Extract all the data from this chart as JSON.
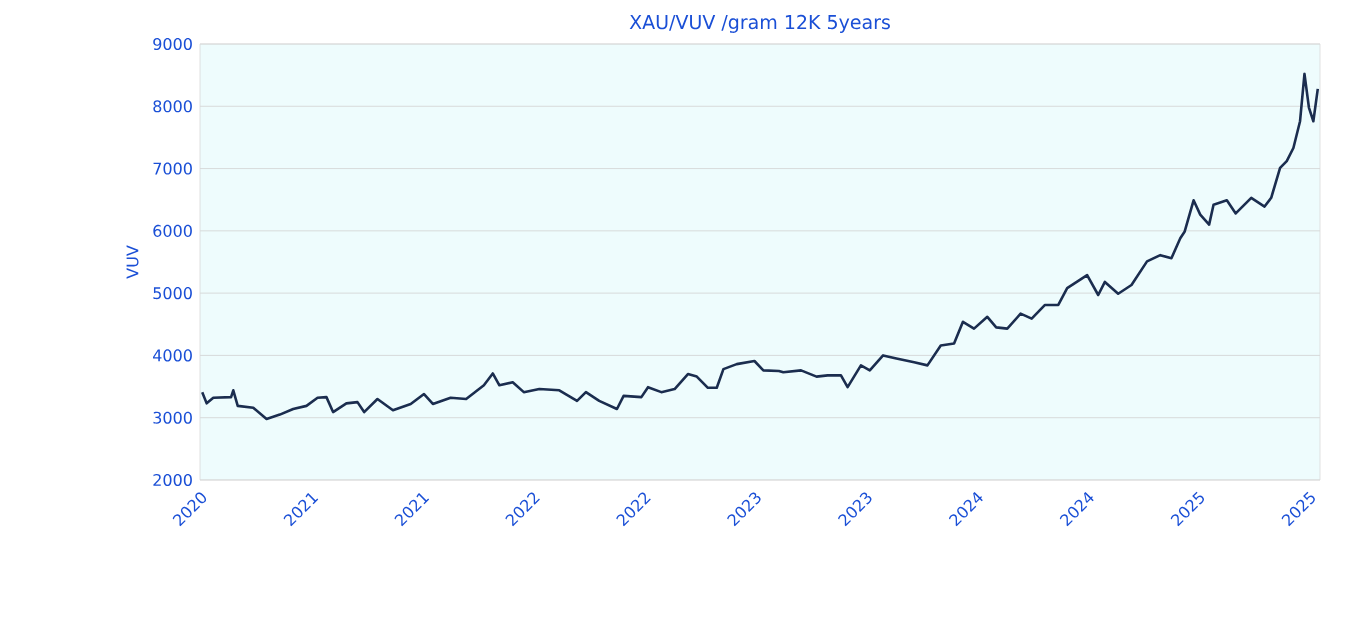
{
  "chart_data": {
    "type": "line",
    "title": "XAU/VUV /gram 12K 5years",
    "ylabel": "VUV",
    "xlim": [
      2020.5,
      2025.55
    ],
    "ylim": [
      2000,
      9000
    ],
    "yticks": [
      2000,
      3000,
      4000,
      5000,
      6000,
      7000,
      8000,
      9000
    ],
    "xticks": [
      {
        "value": 2020.5,
        "label": "2020"
      },
      {
        "value": 2021.0,
        "label": "2021"
      },
      {
        "value": 2021.5,
        "label": "2021"
      },
      {
        "value": 2022.0,
        "label": "2022"
      },
      {
        "value": 2022.5,
        "label": "2022"
      },
      {
        "value": 2023.0,
        "label": "2023"
      },
      {
        "value": 2023.5,
        "label": "2023"
      },
      {
        "value": 2024.0,
        "label": "2024"
      },
      {
        "value": 2024.5,
        "label": "2024"
      },
      {
        "value": 2025.0,
        "label": "2025"
      },
      {
        "value": 2025.5,
        "label": "2025"
      }
    ],
    "grid": "y",
    "marker": "none",
    "line_style": "solid",
    "series": [
      {
        "color": "#1b2d4f",
        "x": [
          2020.51,
          2020.53,
          2020.56,
          2020.64,
          2020.65,
          2020.67,
          2020.74,
          2020.8,
          2020.86,
          2020.92,
          2020.98,
          2021.03,
          2021.07,
          2021.1,
          2021.16,
          2021.21,
          2021.24,
          2021.3,
          2021.37,
          2021.45,
          2021.51,
          2021.55,
          2021.63,
          2021.7,
          2021.78,
          2021.82,
          2021.85,
          2021.91,
          2021.96,
          2022.03,
          2022.12,
          2022.2,
          2022.24,
          2022.3,
          2022.38,
          2022.41,
          2022.49,
          2022.52,
          2022.58,
          2022.64,
          2022.7,
          2022.74,
          2022.79,
          2022.83,
          2022.86,
          2022.92,
          2023.0,
          2023.04,
          2023.11,
          2023.13,
          2023.21,
          2023.28,
          2023.33,
          2023.39,
          2023.42,
          2023.48,
          2023.52,
          2023.58,
          2023.64,
          2023.72,
          2023.78,
          2023.84,
          2023.9,
          2023.94,
          2023.99,
          2024.05,
          2024.09,
          2024.14,
          2024.2,
          2024.25,
          2024.31,
          2024.37,
          2024.41,
          2024.5,
          2024.55,
          2024.58,
          2024.64,
          2024.7,
          2024.77,
          2024.83,
          2024.88,
          2024.92,
          2024.94,
          2024.98,
          2025.01,
          2025.05,
          2025.07,
          2025.13,
          2025.17,
          2025.24,
          2025.3,
          2025.33,
          2025.37,
          2025.4,
          2025.43,
          2025.46,
          2025.48,
          2025.5,
          2025.52,
          2025.54
        ],
        "values": [
          3410,
          3230,
          3320,
          3330,
          3440,
          3190,
          3160,
          2980,
          3050,
          3140,
          3190,
          3320,
          3330,
          3090,
          3230,
          3250,
          3090,
          3300,
          3120,
          3220,
          3380,
          3220,
          3320,
          3300,
          3520,
          3710,
          3520,
          3570,
          3410,
          3460,
          3440,
          3270,
          3410,
          3270,
          3140,
          3350,
          3330,
          3490,
          3410,
          3460,
          3700,
          3660,
          3480,
          3480,
          3780,
          3860,
          3910,
          3760,
          3750,
          3730,
          3760,
          3660,
          3680,
          3680,
          3490,
          3840,
          3760,
          4000,
          3950,
          3890,
          3840,
          4160,
          4190,
          4540,
          4430,
          4620,
          4450,
          4430,
          4670,
          4590,
          4810,
          4810,
          5080,
          5290,
          4970,
          5180,
          4990,
          5130,
          5510,
          5610,
          5560,
          5880,
          5990,
          6490,
          6260,
          6100,
          6420,
          6490,
          6280,
          6530,
          6390,
          6530,
          7010,
          7120,
          7330,
          7760,
          8520,
          7980,
          7760,
          8280
        ]
      }
    ]
  }
}
